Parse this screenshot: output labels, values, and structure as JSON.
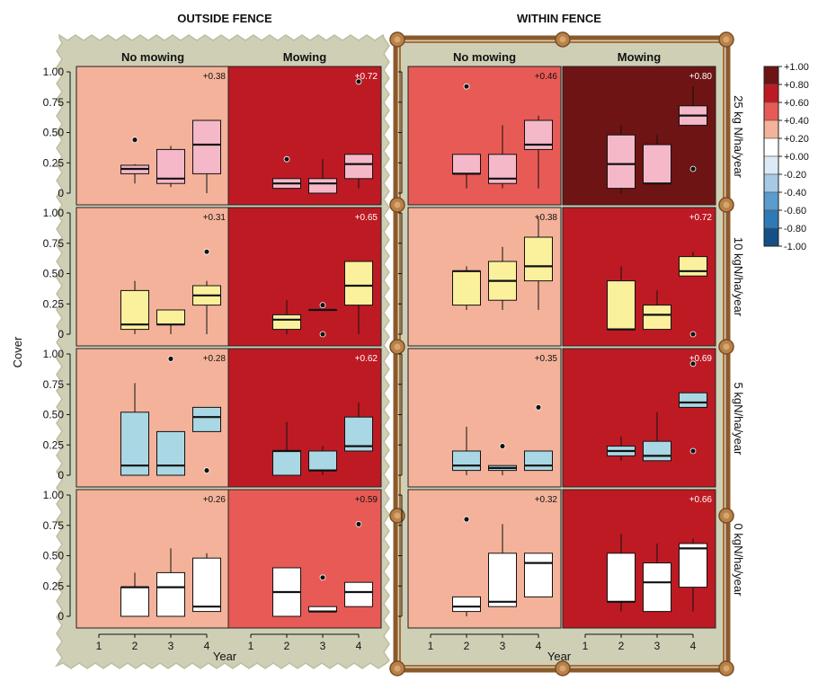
{
  "chart_data": {
    "type": "boxplot",
    "sections": [
      "OUTSIDE FENCE",
      "WITHIN FENCE"
    ],
    "columns": [
      "No mowing",
      "Mowing"
    ],
    "rows": [
      "25 kg N/ha/year",
      "10 kgN/ha/year",
      "5 kgN/ha/year",
      "0 kgN/ha/year"
    ],
    "ylabel": "Cover",
    "xlabel": "Year",
    "x_ticks": [
      "1",
      "2",
      "3",
      "4"
    ],
    "y_ticks": [
      "0",
      "0.25",
      "0.50",
      "0.75",
      "1.00"
    ],
    "ylim": [
      0,
      1
    ],
    "box_colors": [
      "#f5b8c8",
      "#fbf19c",
      "#a9d7e3",
      "#ffffff"
    ],
    "legend": {
      "ticks": [
        "+1.00",
        "+0.80",
        "+0.60",
        "+0.40",
        "+0.20",
        "+0.00",
        "-0.20",
        "-0.40",
        "-0.60",
        "-0.80",
        "-1.00"
      ],
      "colors": [
        "#6e1414",
        "#be1a24",
        "#e85a55",
        "#f4b29a",
        "#ffffff",
        "#dce9f6",
        "#a6c9e6",
        "#5a9ccc",
        "#2f7ab6",
        "#164f86"
      ]
    },
    "panels": [
      {
        "section": 0,
        "col": 0,
        "row": 0,
        "corr": "+0.38",
        "fill": "#f4b29a",
        "boxes": [
          {
            "x": 2,
            "whislo": 0.08,
            "q1": 0.16,
            "med": 0.2,
            "q3": 0.23,
            "whishi": 0.24,
            "fliers": [
              0.44
            ]
          },
          {
            "x": 3,
            "whislo": 0.05,
            "q1": 0.08,
            "med": 0.12,
            "q3": 0.36,
            "whishi": 0.39,
            "fliers": []
          },
          {
            "x": 4,
            "whislo": 0.0,
            "q1": 0.16,
            "med": 0.4,
            "q3": 0.6,
            "whishi": 0.6,
            "fliers": []
          }
        ]
      },
      {
        "section": 0,
        "col": 1,
        "row": 0,
        "corr": "+0.72",
        "fill": "#be1a24",
        "boxes": [
          {
            "x": 2,
            "whislo": 0.04,
            "q1": 0.04,
            "med": 0.08,
            "q3": 0.12,
            "whishi": 0.12,
            "fliers": [
              0.28
            ]
          },
          {
            "x": 3,
            "whislo": 0.0,
            "q1": 0.0,
            "med": 0.08,
            "q3": 0.12,
            "whishi": 0.28,
            "fliers": []
          },
          {
            "x": 4,
            "whislo": 0.04,
            "q1": 0.12,
            "med": 0.24,
            "q3": 0.32,
            "whishi": 0.32,
            "fliers": [
              0.92
            ]
          }
        ]
      },
      {
        "section": 1,
        "col": 0,
        "row": 0,
        "corr": "+0.46",
        "fill": "#e85a55",
        "boxes": [
          {
            "x": 2,
            "whislo": 0.04,
            "q1": 0.16,
            "med": 0.16,
            "q3": 0.32,
            "whishi": 0.32,
            "fliers": [
              0.88
            ]
          },
          {
            "x": 3,
            "whislo": 0.04,
            "q1": 0.08,
            "med": 0.12,
            "q3": 0.32,
            "whishi": 0.56,
            "fliers": []
          },
          {
            "x": 4,
            "whislo": 0.04,
            "q1": 0.36,
            "med": 0.4,
            "q3": 0.6,
            "whishi": 0.64,
            "fliers": []
          }
        ]
      },
      {
        "section": 1,
        "col": 1,
        "row": 0,
        "corr": "+0.80",
        "fill": "#6e1414",
        "boxes": [
          {
            "x": 2,
            "whislo": 0.0,
            "q1": 0.04,
            "med": 0.24,
            "q3": 0.48,
            "whishi": 0.56,
            "fliers": []
          },
          {
            "x": 3,
            "whislo": 0.08,
            "q1": 0.08,
            "med": 0.08,
            "q3": 0.4,
            "whishi": 0.48,
            "fliers": []
          },
          {
            "x": 4,
            "whislo": 0.56,
            "q1": 0.56,
            "med": 0.64,
            "q3": 0.72,
            "whishi": 0.88,
            "fliers": [
              0.2
            ]
          }
        ]
      },
      {
        "section": 0,
        "col": 0,
        "row": 1,
        "corr": "+0.31",
        "fill": "#f4b29a",
        "boxes": [
          {
            "x": 2,
            "whislo": 0.0,
            "q1": 0.04,
            "med": 0.08,
            "q3": 0.36,
            "whishi": 0.44,
            "fliers": []
          },
          {
            "x": 3,
            "whislo": 0.0,
            "q1": 0.08,
            "med": 0.08,
            "q3": 0.2,
            "whishi": 0.2,
            "fliers": []
          },
          {
            "x": 4,
            "whislo": 0.0,
            "q1": 0.24,
            "med": 0.32,
            "q3": 0.4,
            "whishi": 0.44,
            "fliers": [
              0.68
            ]
          }
        ]
      },
      {
        "section": 0,
        "col": 1,
        "row": 1,
        "corr": "+0.65",
        "fill": "#be1a24",
        "boxes": [
          {
            "x": 2,
            "whislo": 0.0,
            "q1": 0.04,
            "med": 0.12,
            "q3": 0.16,
            "whishi": 0.28,
            "fliers": []
          },
          {
            "x": 3,
            "whislo": 0.2,
            "q1": 0.2,
            "med": 0.2,
            "q3": 0.2,
            "whishi": 0.2,
            "fliers": [
              0.24,
              0.0
            ]
          },
          {
            "x": 4,
            "whislo": 0.0,
            "q1": 0.24,
            "med": 0.4,
            "q3": 0.6,
            "whishi": 0.6,
            "fliers": []
          }
        ]
      },
      {
        "section": 1,
        "col": 0,
        "row": 1,
        "corr": "+0.38",
        "fill": "#f4b29a",
        "boxes": [
          {
            "x": 2,
            "whislo": 0.2,
            "q1": 0.24,
            "med": 0.52,
            "q3": 0.52,
            "whishi": 0.56,
            "fliers": []
          },
          {
            "x": 3,
            "whislo": 0.2,
            "q1": 0.28,
            "med": 0.44,
            "q3": 0.6,
            "whishi": 0.72,
            "fliers": []
          },
          {
            "x": 4,
            "whislo": 0.2,
            "q1": 0.44,
            "med": 0.56,
            "q3": 0.8,
            "whishi": 0.96,
            "fliers": []
          }
        ]
      },
      {
        "section": 1,
        "col": 1,
        "row": 1,
        "corr": "+0.72",
        "fill": "#be1a24",
        "boxes": [
          {
            "x": 2,
            "whislo": 0.04,
            "q1": 0.04,
            "med": 0.04,
            "q3": 0.44,
            "whishi": 0.56,
            "fliers": []
          },
          {
            "x": 3,
            "whislo": 0.04,
            "q1": 0.04,
            "med": 0.16,
            "q3": 0.24,
            "whishi": 0.36,
            "fliers": []
          },
          {
            "x": 4,
            "whislo": 0.48,
            "q1": 0.48,
            "med": 0.52,
            "q3": 0.64,
            "whishi": 0.68,
            "fliers": [
              0.0
            ]
          }
        ]
      },
      {
        "section": 0,
        "col": 0,
        "row": 2,
        "corr": "+0.28",
        "fill": "#f4b29a",
        "boxes": [
          {
            "x": 2,
            "whislo": 0.0,
            "q1": 0.0,
            "med": 0.08,
            "q3": 0.52,
            "whishi": 0.76,
            "fliers": []
          },
          {
            "x": 3,
            "whislo": 0.0,
            "q1": 0.0,
            "med": 0.08,
            "q3": 0.36,
            "whishi": 0.36,
            "fliers": [
              0.96
            ]
          },
          {
            "x": 4,
            "whislo": 0.36,
            "q1": 0.36,
            "med": 0.48,
            "q3": 0.56,
            "whishi": 0.56,
            "fliers": [
              0.04
            ]
          }
        ]
      },
      {
        "section": 0,
        "col": 1,
        "row": 2,
        "corr": "+0.62",
        "fill": "#be1a24",
        "boxes": [
          {
            "x": 2,
            "whislo": 0.0,
            "q1": 0.0,
            "med": 0.2,
            "q3": 0.2,
            "whishi": 0.44,
            "fliers": []
          },
          {
            "x": 3,
            "whislo": 0.0,
            "q1": 0.04,
            "med": 0.04,
            "q3": 0.2,
            "whishi": 0.24,
            "fliers": []
          },
          {
            "x": 4,
            "whislo": 0.2,
            "q1": 0.2,
            "med": 0.24,
            "q3": 0.48,
            "whishi": 0.6,
            "fliers": []
          }
        ]
      },
      {
        "section": 1,
        "col": 0,
        "row": 2,
        "corr": "+0.35",
        "fill": "#f4b29a",
        "boxes": [
          {
            "x": 2,
            "whislo": 0.0,
            "q1": 0.04,
            "med": 0.08,
            "q3": 0.2,
            "whishi": 0.4,
            "fliers": []
          },
          {
            "x": 3,
            "whislo": 0.0,
            "q1": 0.04,
            "med": 0.06,
            "q3": 0.08,
            "whishi": 0.08,
            "fliers": [
              0.24
            ]
          },
          {
            "x": 4,
            "whislo": 0.04,
            "q1": 0.04,
            "med": 0.08,
            "q3": 0.2,
            "whishi": 0.2,
            "fliers": [
              0.56
            ]
          }
        ]
      },
      {
        "section": 1,
        "col": 1,
        "row": 2,
        "corr": "+0.69",
        "fill": "#be1a24",
        "boxes": [
          {
            "x": 2,
            "whislo": 0.12,
            "q1": 0.16,
            "med": 0.2,
            "q3": 0.24,
            "whishi": 0.32,
            "fliers": []
          },
          {
            "x": 3,
            "whislo": 0.12,
            "q1": 0.12,
            "med": 0.16,
            "q3": 0.28,
            "whishi": 0.52,
            "fliers": []
          },
          {
            "x": 4,
            "whislo": 0.56,
            "q1": 0.56,
            "med": 0.6,
            "q3": 0.68,
            "whishi": 0.68,
            "fliers": [
              0.92,
              0.2
            ]
          }
        ]
      },
      {
        "section": 0,
        "col": 0,
        "row": 3,
        "corr": "+0.26",
        "fill": "#f4b29a",
        "boxes": [
          {
            "x": 2,
            "whislo": 0.0,
            "q1": 0.0,
            "med": 0.24,
            "q3": 0.24,
            "whishi": 0.36,
            "fliers": []
          },
          {
            "x": 3,
            "whislo": 0.0,
            "q1": 0.0,
            "med": 0.24,
            "q3": 0.36,
            "whishi": 0.56,
            "fliers": []
          },
          {
            "x": 4,
            "whislo": 0.04,
            "q1": 0.04,
            "med": 0.08,
            "q3": 0.48,
            "whishi": 0.52,
            "fliers": []
          }
        ]
      },
      {
        "section": 0,
        "col": 1,
        "row": 3,
        "corr": "+0.59",
        "fill": "#e85a55",
        "boxes": [
          {
            "x": 2,
            "whislo": 0.0,
            "q1": 0.0,
            "med": 0.2,
            "q3": 0.4,
            "whishi": 0.4,
            "fliers": []
          },
          {
            "x": 3,
            "whislo": 0.04,
            "q1": 0.04,
            "med": 0.04,
            "q3": 0.08,
            "whishi": 0.08,
            "fliers": [
              0.32
            ]
          },
          {
            "x": 4,
            "whislo": 0.08,
            "q1": 0.08,
            "med": 0.2,
            "q3": 0.28,
            "whishi": 0.28,
            "fliers": [
              0.76
            ]
          }
        ]
      },
      {
        "section": 1,
        "col": 0,
        "row": 3,
        "corr": "+0.32",
        "fill": "#f4b29a",
        "boxes": [
          {
            "x": 2,
            "whislo": 0.0,
            "q1": 0.04,
            "med": 0.08,
            "q3": 0.16,
            "whishi": 0.16,
            "fliers": [
              0.8
            ]
          },
          {
            "x": 3,
            "whislo": 0.08,
            "q1": 0.08,
            "med": 0.12,
            "q3": 0.52,
            "whishi": 0.76,
            "fliers": []
          },
          {
            "x": 4,
            "whislo": 0.16,
            "q1": 0.16,
            "med": 0.44,
            "q3": 0.52,
            "whishi": 0.52,
            "fliers": []
          }
        ]
      },
      {
        "section": 1,
        "col": 1,
        "row": 3,
        "corr": "+0.66",
        "fill": "#be1a24",
        "boxes": [
          {
            "x": 2,
            "whislo": 0.04,
            "q1": 0.12,
            "med": 0.12,
            "q3": 0.52,
            "whishi": 0.68,
            "fliers": []
          },
          {
            "x": 3,
            "whislo": 0.04,
            "q1": 0.04,
            "med": 0.28,
            "q3": 0.44,
            "whishi": 0.6,
            "fliers": []
          },
          {
            "x": 4,
            "whislo": 0.04,
            "q1": 0.24,
            "med": 0.56,
            "q3": 0.6,
            "whishi": 0.64,
            "fliers": []
          }
        ]
      }
    ]
  }
}
